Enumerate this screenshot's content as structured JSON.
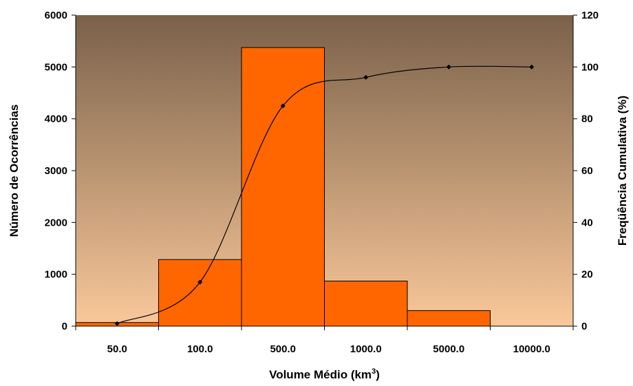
{
  "chart_data": {
    "type": "bar",
    "categories": [
      "50.0",
      "100.0",
      "500.0",
      "1000.0",
      "5000.0",
      "10000.0"
    ],
    "series": [
      {
        "axis": "left",
        "type": "bar",
        "values": [
          70,
          1285,
          5375,
          870,
          300,
          0
        ]
      },
      {
        "axis": "right",
        "type": "line",
        "values": [
          1,
          17,
          85,
          96,
          100,
          100
        ]
      }
    ],
    "xlabel": "Volume Médio (km",
    "xlabel_superscript": "3",
    "xlabel_suffix": ")",
    "ylabel": "Número de Ocorrências",
    "y2label": "Freqüência Cumulativa (%)",
    "ylim": [
      0,
      6000
    ],
    "y2lim": [
      0,
      120
    ],
    "yticks": [
      "0",
      "1000",
      "2000",
      "3000",
      "4000",
      "5000",
      "6000"
    ],
    "y2ticks": [
      "0",
      "20",
      "40",
      "60",
      "80",
      "100",
      "120"
    ],
    "grid": false,
    "colors": {
      "bar_fill": "#FF6600",
      "bar_stroke": "#000000",
      "line": "#000000",
      "plot_bg_top": "#7A614A",
      "plot_bg_bottom": "#FAC89A"
    }
  }
}
